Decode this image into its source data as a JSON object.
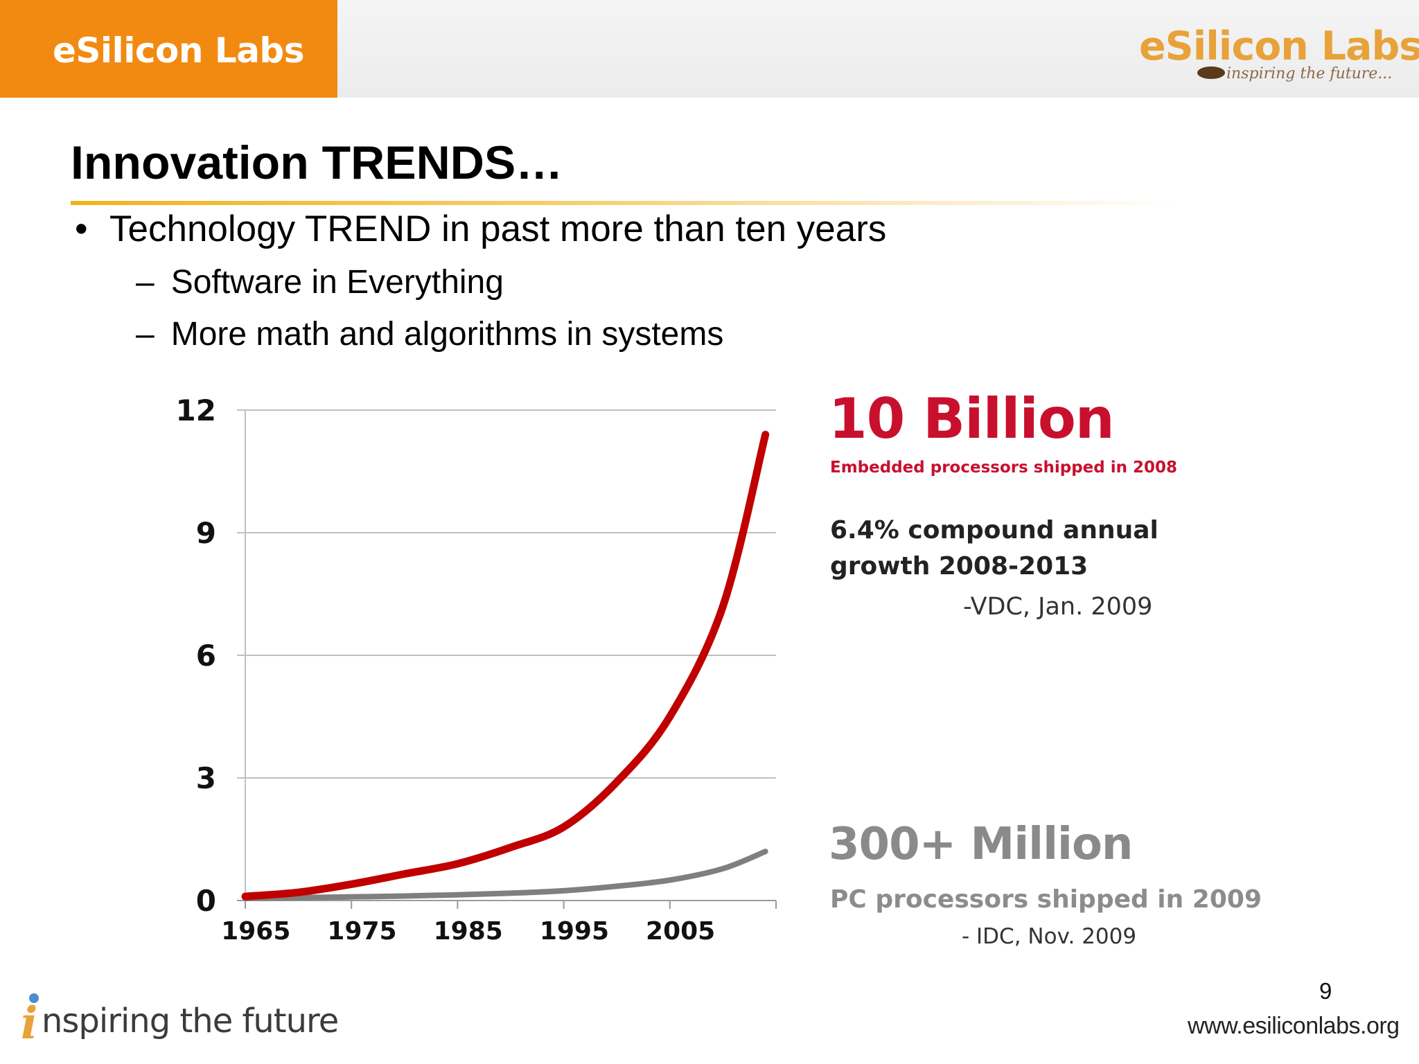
{
  "header": {
    "brand_box_label": "eSilicon Labs",
    "logo_text": "eSilicon Labs",
    "logo_tagline": "inspiring the future..."
  },
  "slide": {
    "title": "Innovation TRENDS…",
    "bullet": "Technology TREND in past more than ten years",
    "subbullets": [
      "Software in Everything",
      "More math and algorithms in systems"
    ],
    "bullet_marker": "•",
    "sub_marker": "–"
  },
  "annotations": {
    "big_red": "10 Billion",
    "small_red": "Embedded processors shipped in 2008",
    "growth": "6.4% compound annual growth 2008-2013",
    "vdc_source": "-VDC, Jan. 2009",
    "big_gray": "300+ Million",
    "pc_text": "PC processors shipped in 2009",
    "idc_source": "- IDC, Nov. 2009"
  },
  "footer": {
    "i_mark": "i",
    "tagline": "nspiring the future",
    "page_number": "9",
    "url": "www.esiliconlabs.org"
  },
  "chart_data": {
    "type": "line",
    "xlabel": "",
    "ylabel": "",
    "x_ticks": [
      1965,
      1975,
      1985,
      1995,
      2005
    ],
    "xlim": [
      1965,
      2015
    ],
    "ylim": [
      0,
      12
    ],
    "y_ticks": [
      0,
      3,
      6,
      9,
      12
    ],
    "grid": true,
    "colors": {
      "embedded": "#c00000",
      "pc": "#7f7f7f",
      "grid": "#bfbfbf",
      "axis_text": "#111111"
    },
    "series": [
      {
        "key": "embedded",
        "x": [
          1965,
          1970,
          1975,
          1980,
          1985,
          1990,
          1995,
          2000,
          2005,
          2010,
          2014
        ],
        "y": [
          0.1,
          0.2,
          0.4,
          0.65,
          0.9,
          1.3,
          1.8,
          2.9,
          4.5,
          7.2,
          11.4
        ]
      },
      {
        "key": "pc",
        "x": [
          1965,
          1970,
          1975,
          1980,
          1985,
          1990,
          1995,
          2000,
          2005,
          2010,
          2014
        ],
        "y": [
          0.05,
          0.07,
          0.09,
          0.11,
          0.14,
          0.18,
          0.24,
          0.35,
          0.5,
          0.78,
          1.2
        ]
      }
    ]
  }
}
